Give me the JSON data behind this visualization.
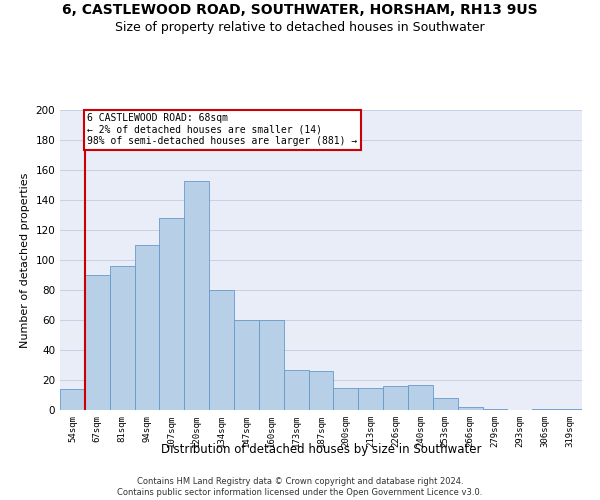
{
  "title": "6, CASTLEWOOD ROAD, SOUTHWATER, HORSHAM, RH13 9US",
  "subtitle": "Size of property relative to detached houses in Southwater",
  "xlabel": "Distribution of detached houses by size in Southwater",
  "ylabel": "Number of detached properties",
  "categories": [
    "54sqm",
    "67sqm",
    "81sqm",
    "94sqm",
    "107sqm",
    "120sqm",
    "134sqm",
    "147sqm",
    "160sqm",
    "173sqm",
    "187sqm",
    "200sqm",
    "213sqm",
    "226sqm",
    "240sqm",
    "253sqm",
    "266sqm",
    "279sqm",
    "293sqm",
    "306sqm",
    "319sqm"
  ],
  "values": [
    14,
    90,
    96,
    110,
    128,
    153,
    80,
    60,
    60,
    27,
    26,
    15,
    15,
    16,
    17,
    8,
    2,
    1,
    0,
    1,
    1
  ],
  "bar_color": "#b8cfe8",
  "bar_edge_color": "#6699cc",
  "annotation_box_text": "6 CASTLEWOOD ROAD: 68sqm\n← 2% of detached houses are smaller (14)\n98% of semi-detached houses are larger (881) →",
  "annotation_box_color": "#ffffff",
  "annotation_box_edge_color": "#cc0000",
  "vline_color": "#cc0000",
  "ylim": [
    0,
    200
  ],
  "yticks": [
    0,
    20,
    40,
    60,
    80,
    100,
    120,
    140,
    160,
    180,
    200
  ],
  "footer_line1": "Contains HM Land Registry data © Crown copyright and database right 2024.",
  "footer_line2": "Contains public sector information licensed under the Open Government Licence v3.0.",
  "bg_color": "#ffffff",
  "ax_bg_color": "#e8edf8",
  "grid_color": "#c8d0e4",
  "title_fontsize": 10,
  "subtitle_fontsize": 9,
  "xlabel_fontsize": 8.5,
  "ylabel_fontsize": 8,
  "bar_width": 1.0,
  "vline_bar_index": 1
}
